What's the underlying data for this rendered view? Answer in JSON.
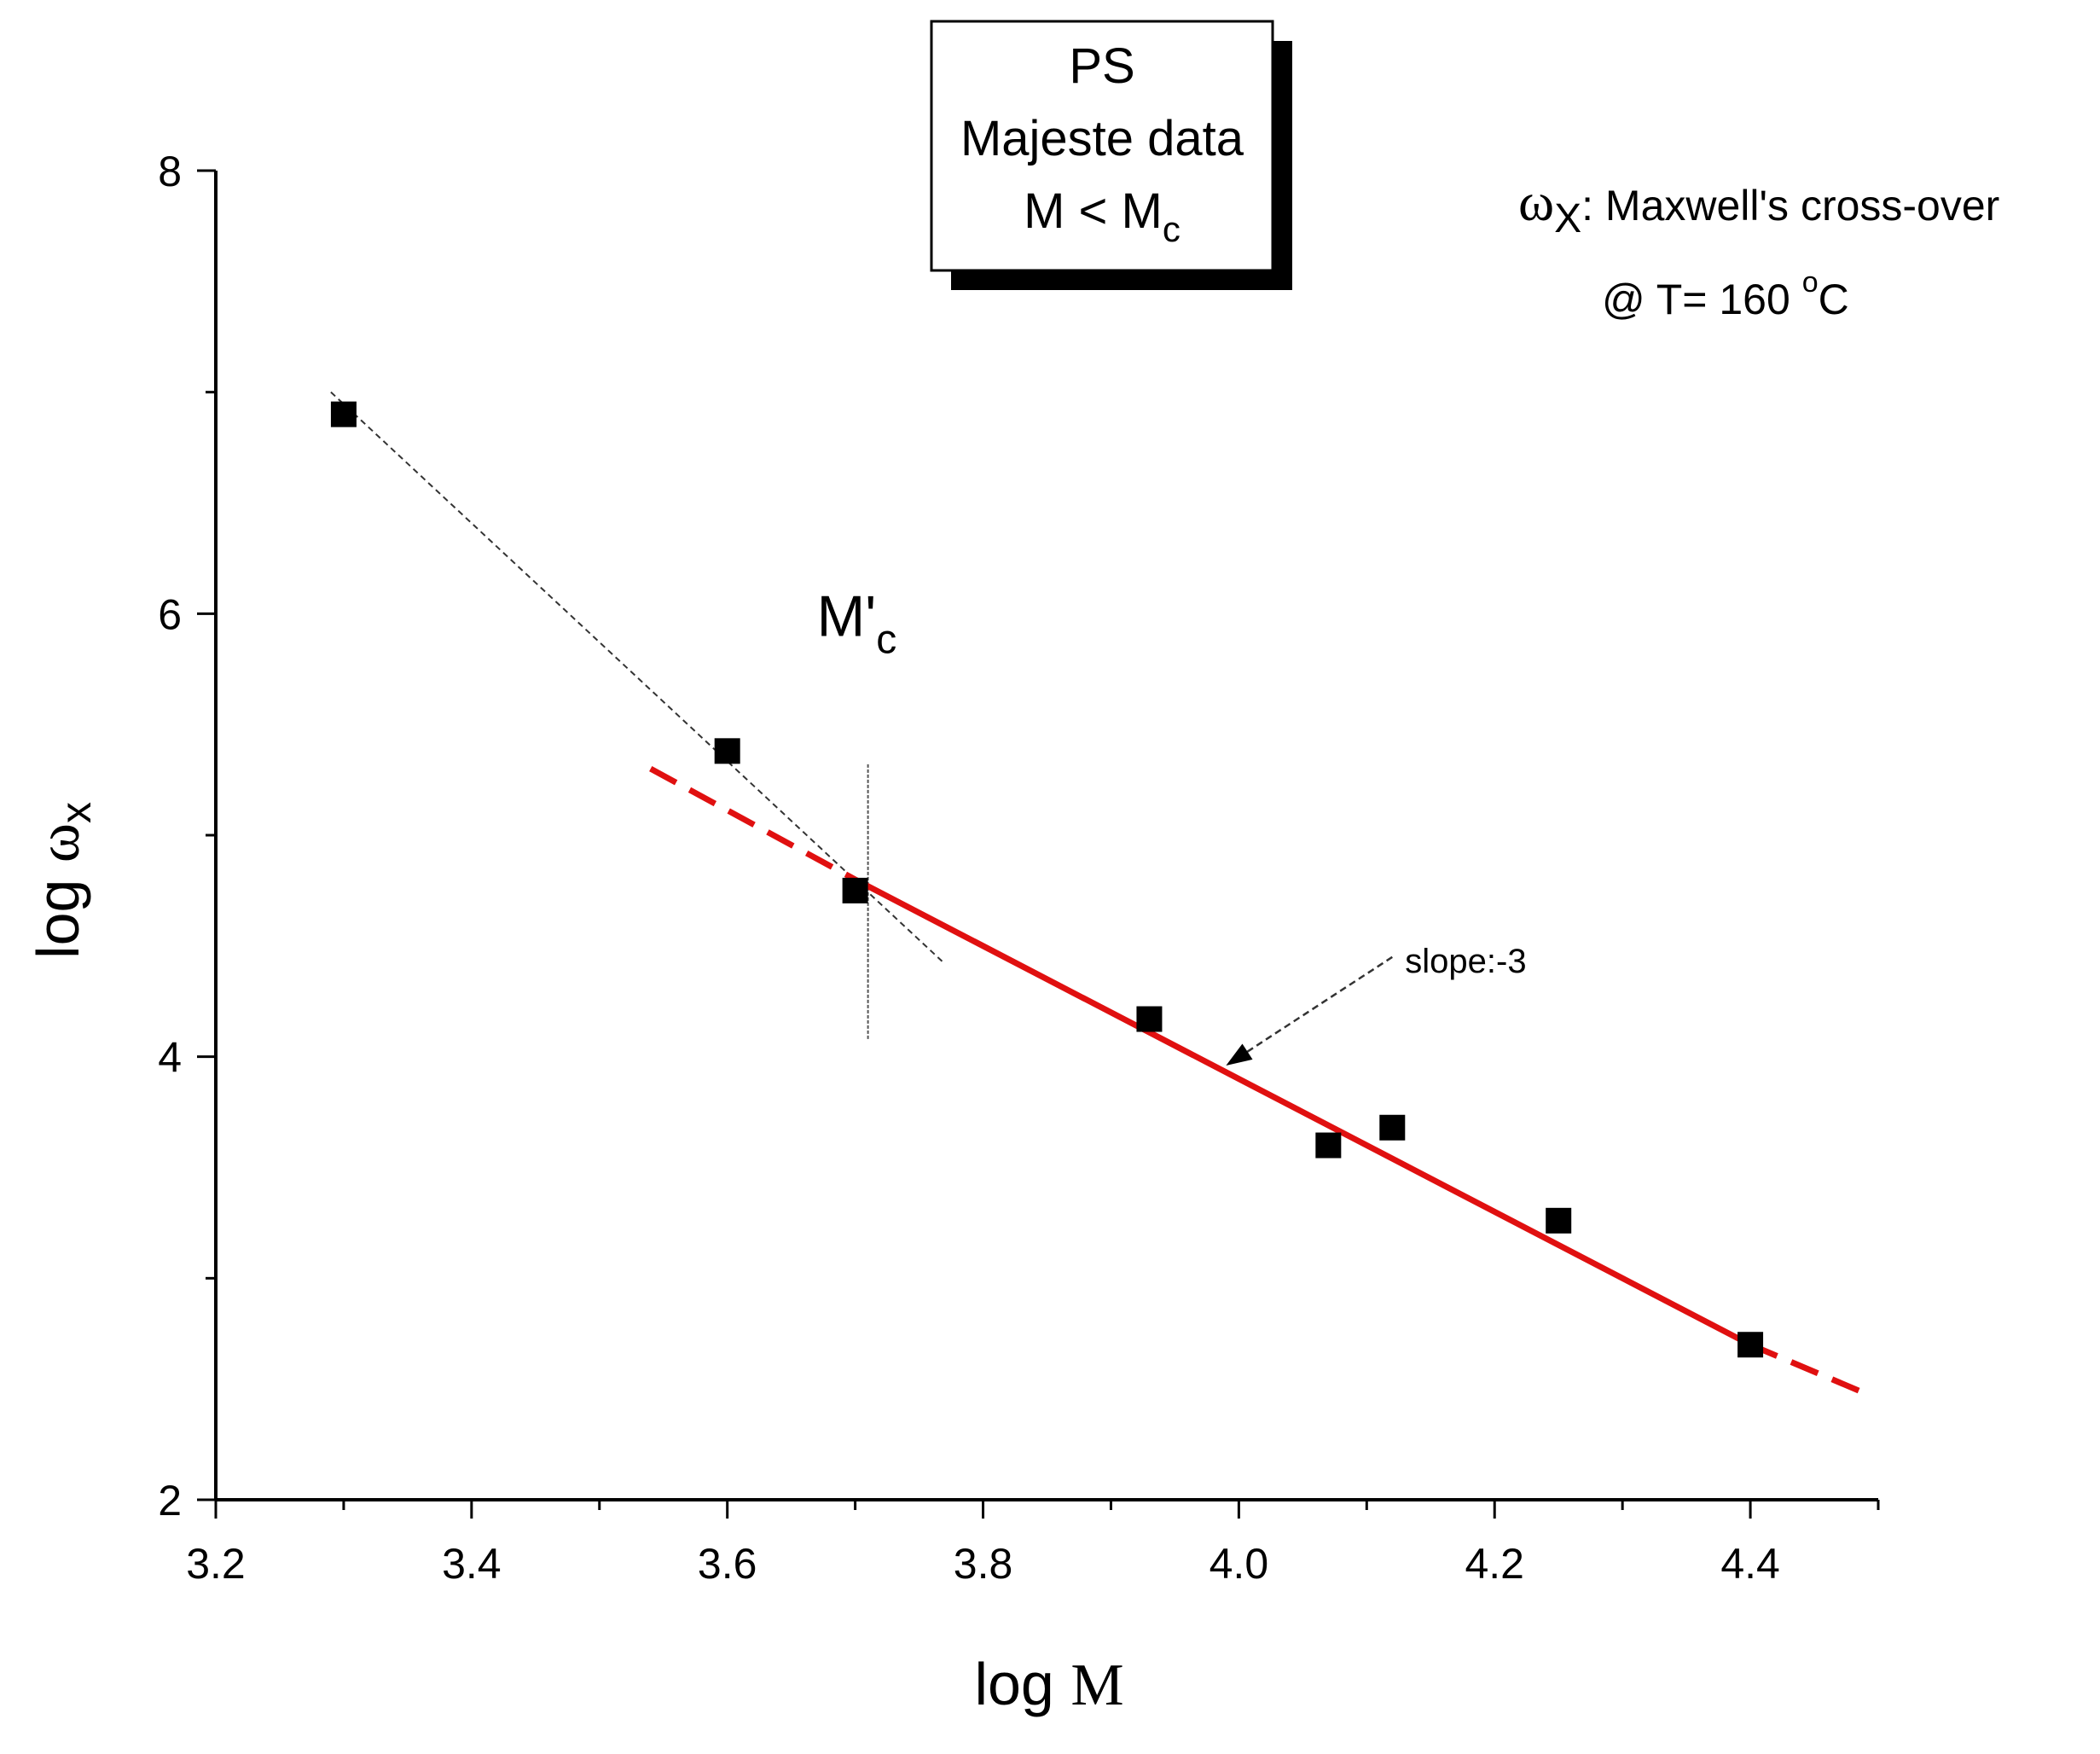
{
  "chart_data": {
    "type": "scatter",
    "xlabel_prefix": "log",
    "xlabel_var": "M",
    "ylabel_prefix": "log",
    "ylabel_var": "ω",
    "ylabel_sub": "x",
    "xlim": [
      3.2,
      4.5
    ],
    "ylim": [
      2,
      8
    ],
    "x_ticks": [
      3.2,
      3.4,
      3.6,
      3.8,
      4.0,
      4.2,
      4.4
    ],
    "x_tick_labels": [
      "3.2",
      "3.4",
      "3.6",
      "3.8",
      "4.0",
      "4.2",
      "4.4"
    ],
    "y_ticks": [
      2,
      4,
      6,
      8
    ],
    "y_tick_labels": [
      "2",
      "4",
      "6",
      "8"
    ],
    "x_minor_step": 0.1,
    "y_minor_step": 1,
    "points": [
      {
        "x": 3.3,
        "y": 6.9
      },
      {
        "x": 3.6,
        "y": 5.38
      },
      {
        "x": 3.7,
        "y": 4.75
      },
      {
        "x": 3.93,
        "y": 4.17
      },
      {
        "x": 4.07,
        "y": 3.6
      },
      {
        "x": 4.12,
        "y": 3.68
      },
      {
        "x": 4.25,
        "y": 3.26
      },
      {
        "x": 4.4,
        "y": 2.7
      }
    ],
    "fit_line": {
      "color": "#e01010",
      "solid_from": [
        3.7,
        4.8
      ],
      "solid_to": [
        4.4,
        2.7
      ],
      "dash_left_from": [
        3.54,
        5.3
      ],
      "dash_right_to": [
        4.49,
        2.48
      ]
    },
    "aux_line": {
      "from": [
        3.29,
        7.0
      ],
      "to": [
        3.77,
        4.42
      ]
    },
    "mc_marker_x": 3.71,
    "mc_marker_y_range": [
      4.08,
      5.32
    ],
    "legend_box": {
      "line1": "PS",
      "line2": "Majeste data",
      "line3_main": "M < M",
      "line3_sub": "c"
    },
    "annotation_omega": {
      "symbol": "ω",
      "sub": "X",
      "text": ": Maxwell's cross-over"
    },
    "annotation_temp": {
      "text": "@ T= 160 ",
      "sup": "o",
      "unit": "C"
    },
    "annotation_mc": {
      "main": "M'",
      "sub": "c",
      "x": 3.67,
      "y": 5.9
    },
    "annotation_slope": {
      "text": "slope:-3",
      "arrow_from": [
        4.12,
        4.45
      ],
      "arrow_to": [
        3.99,
        3.96
      ],
      "label_at": [
        4.13,
        4.38
      ]
    }
  }
}
